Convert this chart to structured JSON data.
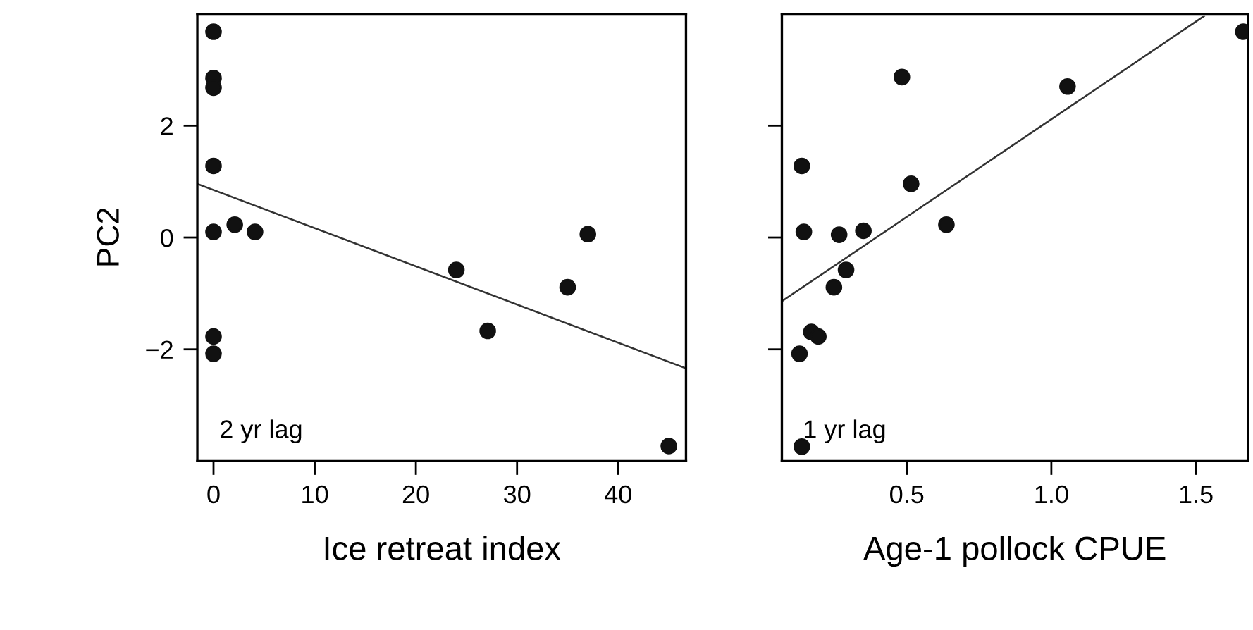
{
  "chart_data": [
    {
      "type": "scatter",
      "xlabel": "Ice retreat index",
      "ylabel": "PC2",
      "annotations": [
        "2 yr lag"
      ],
      "marker": "circle",
      "grid": false,
      "legend": false,
      "xlim": [
        -1.6,
        46.7
      ],
      "ylim": [
        -4,
        4
      ],
      "xticks": [
        0,
        10,
        20,
        30,
        40
      ],
      "yticks": [
        {
          "value": -2,
          "label": "−2"
        },
        0,
        2
      ],
      "series": [
        {
          "color": "#111111",
          "x": [
            0,
            0,
            0,
            0,
            0,
            2.1,
            4.1,
            0,
            0,
            24.0,
            27.1,
            35.0,
            37.0,
            45.0
          ],
          "values": [
            3.68,
            2.85,
            2.68,
            1.28,
            0.1,
            0.23,
            0.1,
            -1.77,
            -2.08,
            -0.58,
            -1.67,
            -0.89,
            0.06,
            -3.73
          ]
        },
        {
          "type": "line",
          "color": "#333333",
          "marker": "none",
          "x": [
            -1.6,
            46.7
          ],
          "values": [
            0.96,
            -2.34
          ]
        }
      ]
    },
    {
      "type": "scatter",
      "xlabel": "Age-1 pollock CPUE",
      "annotations": [
        "1 yr lag"
      ],
      "marker": "circle",
      "grid": false,
      "legend": false,
      "tick_labels": "x",
      "xlim": [
        0.068,
        1.68
      ],
      "ylim": [
        -4,
        4
      ],
      "xticks": [
        0.5,
        {
          "value": 1.0,
          "label": "1.0"
        },
        1.5
      ],
      "yticks": [
        -2,
        0,
        2
      ],
      "series": [
        {
          "color": "#111111",
          "x": [
            0.137,
            0.144,
            0.266,
            0.35,
            0.483,
            0.515,
            0.637,
            0.29,
            0.248,
            0.17,
            0.194,
            0.129,
            0.137,
            1.056,
            1.664
          ],
          "values": [
            1.28,
            0.1,
            0.05,
            0.12,
            2.87,
            0.96,
            0.23,
            -0.58,
            -0.89,
            -1.69,
            -1.77,
            -2.08,
            -3.74,
            2.7,
            3.68
          ]
        },
        {
          "type": "line",
          "color": "#333333",
          "marker": "none",
          "x": [
            0.068,
            1.528
          ],
          "values": [
            -1.14,
            3.96
          ]
        }
      ]
    }
  ]
}
